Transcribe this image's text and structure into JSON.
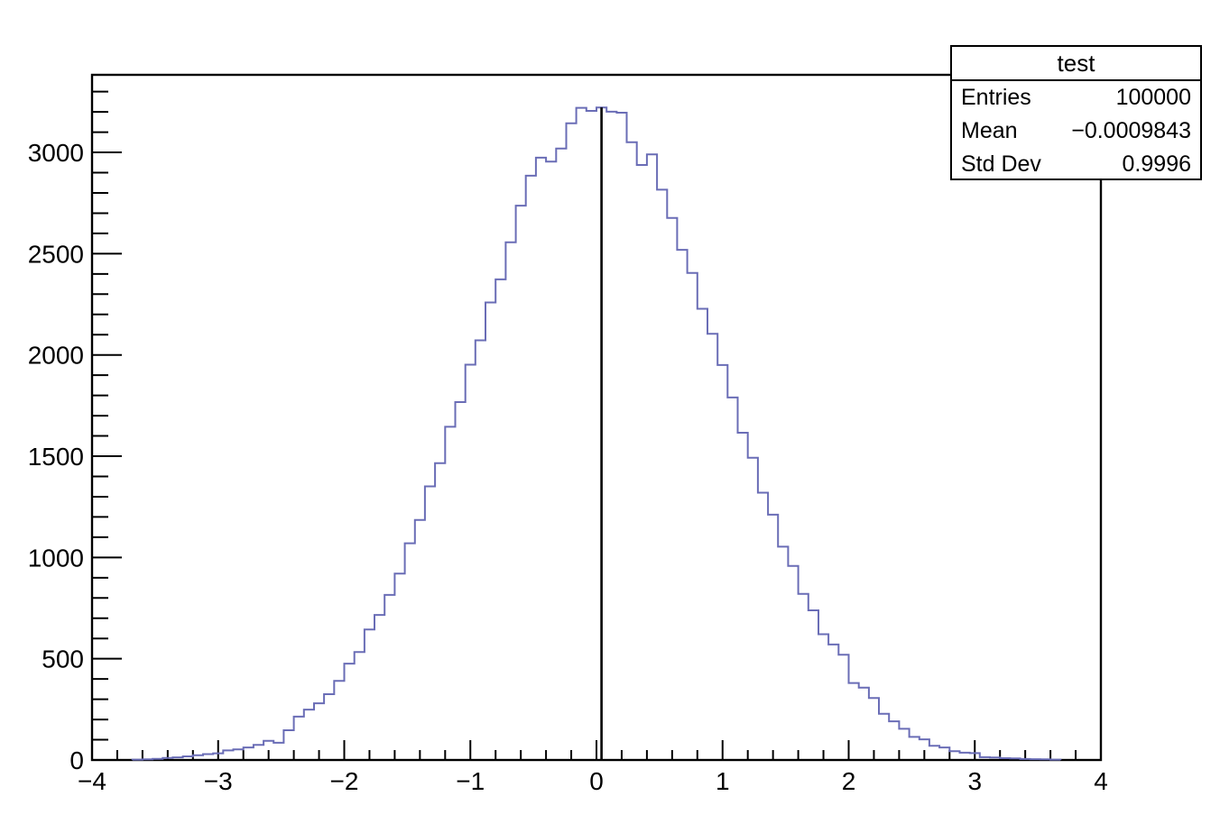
{
  "stats_box": {
    "title": "test",
    "rows": [
      {
        "label": "Entries",
        "value": "100000"
      },
      {
        "label": "Mean",
        "value": "−0.0009843"
      },
      {
        "label": "Std Dev",
        "value": "0.9996"
      }
    ]
  },
  "chart_data": {
    "type": "histogram",
    "title": "test",
    "entries": 100000,
    "mean": -0.0009843,
    "std_dev": 0.9996,
    "xlabel": "",
    "ylabel": "",
    "xlim": [
      -4,
      4
    ],
    "ylim": [
      0,
      3383
    ],
    "grid": false,
    "legend_position": "stats-box top-right",
    "x_major_ticks": [
      -4,
      -3,
      -2,
      -1,
      0,
      1,
      2,
      3,
      4
    ],
    "x_tick_labels": [
      "−4",
      "−3",
      "−2",
      "−1",
      "0",
      "1",
      "2",
      "3",
      "4"
    ],
    "x_minor_step": 0.2,
    "y_major_ticks": [
      0,
      500,
      1000,
      1500,
      2000,
      2500,
      3000
    ],
    "y_tick_labels": [
      "0",
      "500",
      "1000",
      "1500",
      "2000",
      "2500",
      "3000"
    ],
    "y_minor_step": 100,
    "marker_line_x": 0.04,
    "colors": {
      "histogram_line": "#6a6db6",
      "axis": "#000000",
      "marker_line": "#000000",
      "background": "#ffffff"
    },
    "bins": {
      "xmin": -4,
      "xmax": 4,
      "count": 100,
      "values": [
        0,
        0,
        0,
        0,
        2,
        3,
        6,
        10,
        13,
        18,
        23,
        29,
        33,
        47,
        52,
        62,
        75,
        95,
        85,
        147,
        214,
        249,
        280,
        325,
        391,
        476,
        533,
        644,
        716,
        815,
        920,
        1070,
        1185,
        1351,
        1466,
        1645,
        1767,
        1952,
        2072,
        2259,
        2373,
        2556,
        2737,
        2885,
        2974,
        2955,
        3019,
        3144,
        3220,
        3205,
        3222,
        3201,
        3196,
        3050,
        2938,
        2990,
        2816,
        2676,
        2519,
        2405,
        2228,
        2104,
        1950,
        1790,
        1616,
        1492,
        1320,
        1211,
        1053,
        958,
        820,
        739,
        621,
        570,
        520,
        380,
        357,
        306,
        228,
        191,
        154,
        114,
        102,
        70,
        62,
        43,
        36,
        34,
        14,
        12,
        9,
        8,
        5,
        4,
        3,
        2,
        0,
        0,
        0,
        0
      ]
    }
  }
}
